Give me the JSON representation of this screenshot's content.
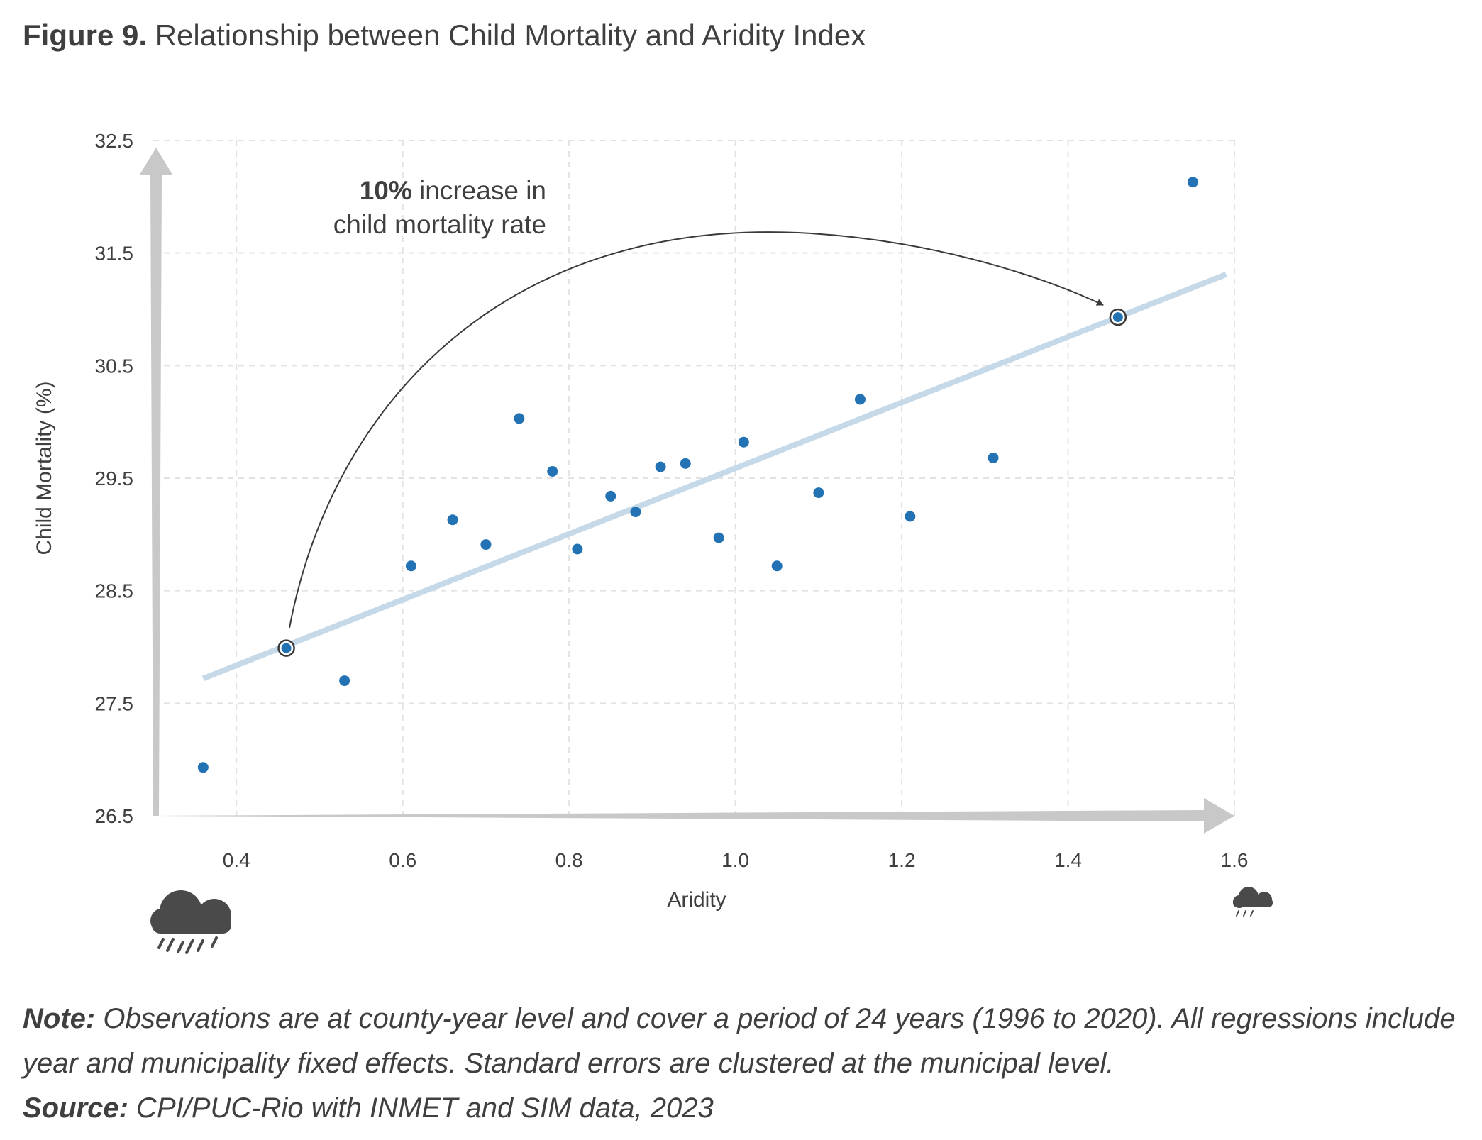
{
  "figure": {
    "label": "Figure 9.",
    "title": "Relationship between Child Mortality and Aridity Index"
  },
  "chart_data": {
    "type": "scatter",
    "title": "Relationship between Child Mortality and Aridity Index",
    "xlabel": "Aridity",
    "ylabel": "Child Mortality (%)",
    "xlim": [
      0.3,
      1.6
    ],
    "ylim": [
      26.5,
      32.5
    ],
    "xticks": [
      "0.4",
      "0.6",
      "0.8",
      "1.0",
      "1.2",
      "1.4",
      "1.6"
    ],
    "yticks": [
      "26.5",
      "27.5",
      "28.5",
      "29.5",
      "30.5",
      "31.5",
      "32.5"
    ],
    "grid": true,
    "point_color": "#2272b4",
    "trend_color": "#c5d9e8",
    "axis_arrow_color": "#c8c8c8",
    "points": [
      {
        "x": 0.36,
        "y": 26.93
      },
      {
        "x": 0.53,
        "y": 27.7
      },
      {
        "x": 0.61,
        "y": 28.72
      },
      {
        "x": 0.66,
        "y": 29.13
      },
      {
        "x": 0.7,
        "y": 28.91
      },
      {
        "x": 0.74,
        "y": 30.03
      },
      {
        "x": 0.78,
        "y": 29.56
      },
      {
        "x": 0.81,
        "y": 28.87
      },
      {
        "x": 0.85,
        "y": 29.34
      },
      {
        "x": 0.88,
        "y": 29.2
      },
      {
        "x": 0.91,
        "y": 29.6
      },
      {
        "x": 0.94,
        "y": 29.63
      },
      {
        "x": 0.98,
        "y": 28.97
      },
      {
        "x": 1.01,
        "y": 29.82
      },
      {
        "x": 1.05,
        "y": 28.72
      },
      {
        "x": 1.1,
        "y": 29.37
      },
      {
        "x": 1.15,
        "y": 30.2
      },
      {
        "x": 1.21,
        "y": 29.16
      },
      {
        "x": 1.31,
        "y": 29.68
      },
      {
        "x": 1.55,
        "y": 32.13
      }
    ],
    "trendline": {
      "x": [
        0.36,
        1.59
      ],
      "y": [
        27.72,
        31.31
      ]
    },
    "highlighted_points": [
      {
        "x": 0.46,
        "y": 27.99
      },
      {
        "x": 1.46,
        "y": 30.93
      }
    ],
    "annotation": {
      "bold": "10%",
      "line1": " increase in",
      "line2": "child mortality rate"
    }
  },
  "icons": {
    "left": "heavy-rain-cloud-icon",
    "right": "light-rain-cloud-icon"
  },
  "note": {
    "label": "Note:",
    "text": " Observations are at county-year level and cover a period of 24 years (1996 to 2020). All regressions include year and municipality fixed effects. Standard errors are clustered at the municipal level.",
    "source_label": "Source:",
    "source_text": " CPI/PUC-Rio with INMET and SIM data, 2023"
  }
}
